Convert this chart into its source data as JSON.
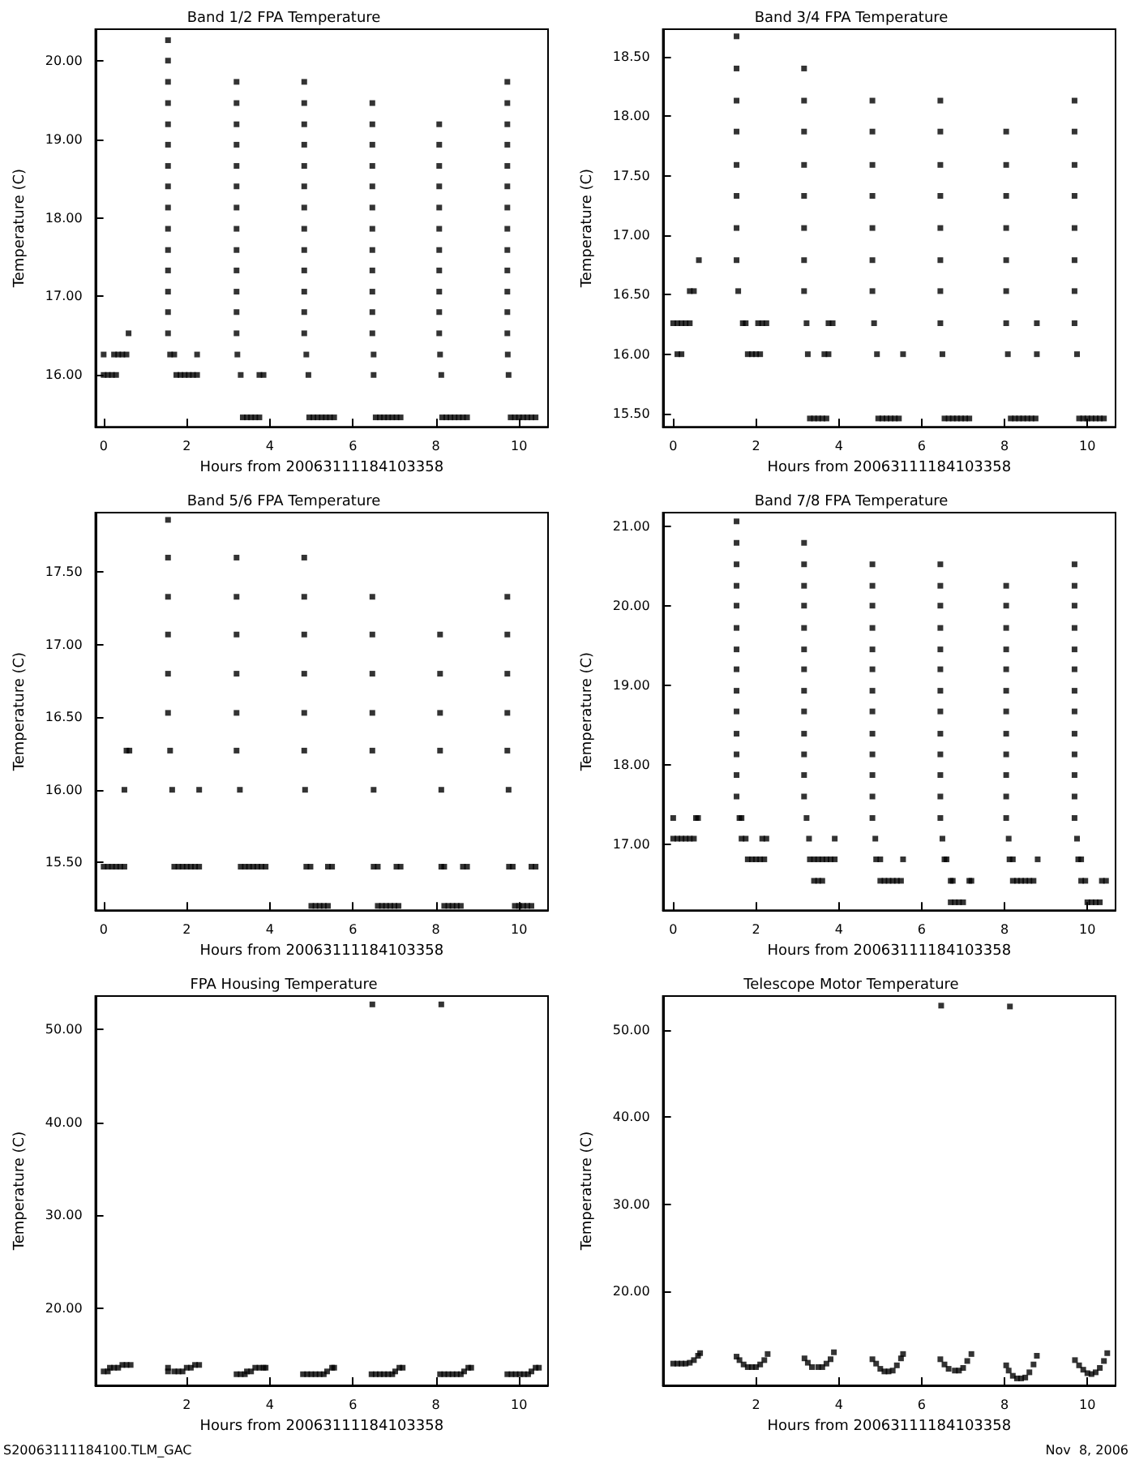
{
  "chart_data": [
    {
      "type": "scatter",
      "title": "Band 1/2 FPA Temperature",
      "xlabel": "Hours from 20063111184103358",
      "ylabel": "Temperature (C)",
      "marker": "square",
      "xlim": [
        -0.2,
        10.7
      ],
      "ylim": [
        15.34,
        20.4
      ],
      "xticks": [
        0,
        2,
        4,
        6,
        8,
        10
      ],
      "yticks": [
        {
          "value": 16,
          "label": "16.00"
        },
        {
          "value": 17,
          "label": "17.00"
        },
        {
          "value": 18,
          "label": "18.00"
        },
        {
          "value": 19,
          "label": "19.00"
        },
        {
          "value": 20,
          "label": "20.00"
        }
      ],
      "series": [
        {
          "color": "#000000",
          "x": [
            0,
            0.25,
            0.35,
            0.45,
            0.55,
            0,
            0.1,
            0.2,
            0.3,
            0.6,
            1.55,
            1.55,
            1.55,
            1.55,
            1.55,
            1.55,
            1.55,
            1.55,
            1.55,
            1.55,
            1.55,
            1.55,
            1.55,
            1.55,
            1.55,
            1.6,
            1.7,
            2.25,
            1.75,
            1.85,
            1.95,
            2.05,
            2.15,
            2.25,
            3.2,
            3.2,
            3.2,
            3.2,
            3.2,
            3.2,
            3.2,
            3.2,
            3.2,
            3.2,
            3.2,
            3.2,
            3.2,
            3.22,
            3.3,
            3.75,
            3.85,
            3.35,
            3.45,
            3.55,
            3.65,
            3.75,
            4.83,
            4.83,
            4.83,
            4.83,
            4.83,
            4.83,
            4.83,
            4.83,
            4.83,
            4.83,
            4.83,
            4.83,
            4.83,
            4.88,
            4.93,
            4.95,
            5.05,
            5.15,
            5.25,
            5.35,
            5.45,
            5.55,
            6.47,
            6.47,
            6.47,
            6.47,
            6.47,
            6.47,
            6.47,
            6.47,
            6.47,
            6.47,
            6.47,
            6.47,
            6.5,
            6.5,
            6.55,
            6.65,
            6.75,
            6.85,
            6.95,
            7.05,
            7.15,
            8.08,
            8.08,
            8.08,
            8.08,
            8.08,
            8.08,
            8.08,
            8.08,
            8.08,
            8.08,
            8.08,
            8.1,
            8.13,
            8.15,
            8.25,
            8.35,
            8.45,
            8.55,
            8.65,
            8.75,
            9.72,
            9.72,
            9.72,
            9.72,
            9.72,
            9.72,
            9.72,
            9.72,
            9.72,
            9.72,
            9.72,
            9.72,
            9.72,
            9.73,
            9.75,
            9.8,
            9.9,
            10,
            10.1,
            10.2,
            10.3,
            10.4
          ],
          "values": [
            16.26,
            16.26,
            16.26,
            16.26,
            16.26,
            16,
            16,
            16,
            16,
            16.53,
            20.26,
            20,
            19.73,
            19.46,
            19.19,
            18.93,
            18.66,
            18.4,
            18.13,
            17.86,
            17.59,
            17.33,
            17.06,
            16.8,
            16.53,
            16.26,
            16.26,
            16.26,
            16,
            16,
            16,
            16,
            16,
            16,
            19.73,
            19.46,
            19.19,
            18.93,
            18.66,
            18.4,
            18.13,
            17.86,
            17.59,
            17.33,
            17.06,
            16.8,
            16.53,
            16.26,
            16,
            16,
            16,
            15.46,
            15.46,
            15.46,
            15.46,
            15.46,
            19.73,
            19.46,
            19.19,
            18.93,
            18.66,
            18.4,
            18.13,
            17.86,
            17.59,
            17.33,
            17.06,
            16.8,
            16.53,
            16.26,
            16,
            15.46,
            15.46,
            15.46,
            15.46,
            15.46,
            15.46,
            15.46,
            19.46,
            19.19,
            18.93,
            18.66,
            18.4,
            18.13,
            17.86,
            17.59,
            17.33,
            17.06,
            16.8,
            16.53,
            16.26,
            16,
            15.46,
            15.46,
            15.46,
            15.46,
            15.46,
            15.46,
            15.46,
            19.19,
            18.93,
            18.66,
            18.4,
            18.13,
            17.86,
            17.59,
            17.33,
            17.06,
            16.8,
            16.53,
            16.26,
            16,
            15.46,
            15.46,
            15.46,
            15.46,
            15.46,
            15.46,
            15.46,
            19.73,
            19.46,
            19.19,
            18.93,
            18.66,
            18.4,
            18.13,
            17.86,
            17.59,
            17.33,
            17.06,
            16.8,
            16.53,
            16.26,
            16,
            15.46,
            15.46,
            15.46,
            15.46,
            15.46,
            15.46,
            15.46
          ]
        }
      ]
    },
    {
      "type": "scatter",
      "title": "Band 3/4 FPA Temperature",
      "xlabel": "Hours from 20063111184103358",
      "ylabel": "Temperature (C)",
      "marker": "square",
      "xlim": [
        -0.25,
        10.68
      ],
      "ylim": [
        15.39,
        18.73
      ],
      "xticks": [
        0,
        2,
        4,
        6,
        8,
        10
      ],
      "yticks": [
        {
          "value": 15.5,
          "label": "15.50"
        },
        {
          "value": 16,
          "label": "16.00"
        },
        {
          "value": 16.5,
          "label": "16.50"
        },
        {
          "value": 17,
          "label": "17.00"
        },
        {
          "value": 17.5,
          "label": "17.50"
        },
        {
          "value": 18,
          "label": "18.00"
        },
        {
          "value": 18.5,
          "label": "18.50"
        }
      ],
      "series": [
        {
          "color": "#000000",
          "x": [
            0,
            0.1,
            0.2,
            0.3,
            0.4,
            0.1,
            0.2,
            0.4,
            0.5,
            0.62,
            1.53,
            1.53,
            1.53,
            1.53,
            1.53,
            1.53,
            1.53,
            1.53,
            1.57,
            1.68,
            1.75,
            2.05,
            2.15,
            2.25,
            1.8,
            1.9,
            2,
            2.1,
            3.16,
            3.16,
            3.16,
            3.16,
            3.16,
            3.16,
            3.16,
            3.16,
            3.22,
            3.25,
            3.75,
            3.85,
            3.65,
            3.75,
            3.3,
            3.4,
            3.5,
            3.6,
            3.7,
            4.81,
            4.81,
            4.81,
            4.81,
            4.81,
            4.81,
            4.81,
            4.85,
            4.92,
            5.55,
            4.95,
            5.05,
            5.15,
            5.25,
            5.35,
            5.45,
            6.45,
            6.45,
            6.45,
            6.45,
            6.45,
            6.45,
            6.45,
            6.45,
            6.5,
            6.55,
            6.65,
            6.75,
            6.85,
            6.95,
            7.05,
            7.15,
            8.04,
            8.04,
            8.04,
            8.04,
            8.04,
            8.04,
            8.04,
            8.08,
            8.78,
            8.78,
            8.15,
            8.25,
            8.35,
            8.45,
            8.55,
            8.65,
            8.75,
            9.69,
            9.69,
            9.69,
            9.69,
            9.69,
            9.69,
            9.69,
            9.69,
            9.75,
            9.8,
            9.9,
            10,
            10.1,
            10.2,
            10.3,
            10.4
          ],
          "values": [
            16.26,
            16.26,
            16.26,
            16.26,
            16.26,
            16,
            16,
            16.53,
            16.53,
            16.79,
            18.67,
            18.4,
            18.13,
            17.87,
            17.59,
            17.33,
            17.06,
            16.79,
            16.53,
            16.26,
            16.26,
            16.26,
            16.26,
            16.26,
            16,
            16,
            16,
            16,
            18.4,
            18.13,
            17.87,
            17.59,
            17.33,
            17.06,
            16.79,
            16.53,
            16.26,
            16,
            16.26,
            16.26,
            16,
            16,
            15.46,
            15.46,
            15.46,
            15.46,
            15.46,
            18.13,
            17.87,
            17.59,
            17.33,
            17.06,
            16.79,
            16.53,
            16.26,
            16,
            16,
            15.46,
            15.46,
            15.46,
            15.46,
            15.46,
            15.46,
            18.13,
            17.87,
            17.59,
            17.33,
            17.06,
            16.79,
            16.53,
            16.26,
            16,
            15.46,
            15.46,
            15.46,
            15.46,
            15.46,
            15.46,
            15.46,
            17.87,
            17.59,
            17.33,
            17.06,
            16.79,
            16.53,
            16.26,
            16,
            16.26,
            16,
            15.46,
            15.46,
            15.46,
            15.46,
            15.46,
            15.46,
            15.46,
            18.13,
            17.87,
            17.59,
            17.33,
            17.06,
            16.79,
            16.53,
            16.26,
            16,
            15.46,
            15.46,
            15.46,
            15.46,
            15.46,
            15.46,
            15.46
          ]
        }
      ]
    },
    {
      "type": "scatter",
      "title": "Band 5/6 FPA Temperature",
      "xlabel": "Hours from 20063111184103358",
      "ylabel": "Temperature (C)",
      "marker": "square",
      "xlim": [
        -0.2,
        10.7
      ],
      "ylim": [
        15.17,
        17.91
      ],
      "xticks": [
        0,
        2,
        4,
        6,
        8,
        10
      ],
      "yticks": [
        {
          "value": 15.5,
          "label": "15.50"
        },
        {
          "value": 16,
          "label": "16.00"
        },
        {
          "value": 16.5,
          "label": "16.50"
        },
        {
          "value": 17,
          "label": "17.00"
        },
        {
          "value": 17.5,
          "label": "17.50"
        }
      ],
      "series": [
        {
          "color": "#000000",
          "x": [
            0,
            0.1,
            0.2,
            0.3,
            0.4,
            0.5,
            0.5,
            0.55,
            0.62,
            1.55,
            1.55,
            1.55,
            1.55,
            1.55,
            1.55,
            1.6,
            1.65,
            2.3,
            1.7,
            1.8,
            1.9,
            2,
            2.1,
            2.2,
            2.3,
            3.2,
            3.2,
            3.2,
            3.2,
            3.2,
            3.2,
            3.28,
            3.3,
            3.4,
            3.5,
            3.6,
            3.7,
            3.8,
            3.9,
            4.83,
            4.83,
            4.83,
            4.83,
            4.83,
            4.83,
            4.85,
            4.88,
            4.98,
            5.4,
            5.5,
            5,
            5.1,
            5.2,
            5.3,
            5.4,
            6.47,
            6.47,
            6.47,
            6.47,
            6.47,
            6.5,
            6.5,
            6.6,
            7.05,
            7.15,
            6.6,
            6.7,
            6.8,
            6.9,
            7,
            7.1,
            8.1,
            8.1,
            8.1,
            8.1,
            8.13,
            8.13,
            8.2,
            8.65,
            8.75,
            8.2,
            8.3,
            8.4,
            8.5,
            8.6,
            9.72,
            9.72,
            9.72,
            9.72,
            9.72,
            9.75,
            9.76,
            9.85,
            10.3,
            10.4,
            9.9,
            10,
            10.1,
            10.2,
            10.3
          ],
          "values": [
            15.47,
            15.47,
            15.47,
            15.47,
            15.47,
            15.47,
            16,
            16.27,
            16.27,
            17.86,
            17.6,
            17.33,
            17.07,
            16.8,
            16.53,
            16.27,
            16,
            16,
            15.47,
            15.47,
            15.47,
            15.47,
            15.47,
            15.47,
            15.47,
            17.6,
            17.33,
            17.07,
            16.8,
            16.53,
            16.27,
            16,
            15.47,
            15.47,
            15.47,
            15.47,
            15.47,
            15.47,
            15.47,
            17.6,
            17.33,
            17.07,
            16.8,
            16.53,
            16.27,
            16,
            15.47,
            15.47,
            15.47,
            15.47,
            15.2,
            15.2,
            15.2,
            15.2,
            15.2,
            17.33,
            17.07,
            16.8,
            16.53,
            16.27,
            16,
            15.47,
            15.47,
            15.47,
            15.47,
            15.2,
            15.2,
            15.2,
            15.2,
            15.2,
            15.2,
            17.07,
            16.8,
            16.53,
            16.27,
            16,
            15.47,
            15.47,
            15.47,
            15.47,
            15.2,
            15.2,
            15.2,
            15.2,
            15.2,
            17.33,
            17.07,
            16.8,
            16.53,
            16.27,
            16,
            15.47,
            15.47,
            15.47,
            15.47,
            15.2,
            15.2,
            15.2,
            15.2,
            15.2
          ]
        }
      ]
    },
    {
      "type": "scatter",
      "title": "Band 7/8 FPA Temperature",
      "xlabel": "Hours from 20063111184103358",
      "ylabel": "Temperature (C)",
      "marker": "square",
      "xlim": [
        -0.25,
        10.68
      ],
      "ylim": [
        16.17,
        21.17
      ],
      "xticks": [
        0,
        2,
        4,
        6,
        8,
        10
      ],
      "yticks": [
        {
          "value": 17,
          "label": "17.00"
        },
        {
          "value": 18,
          "label": "18.00"
        },
        {
          "value": 19,
          "label": "19.00"
        },
        {
          "value": 20,
          "label": "20.00"
        },
        {
          "value": 21,
          "label": "21.00"
        }
      ],
      "series": [
        {
          "color": "#000000",
          "x": [
            0,
            0.55,
            0.6,
            0,
            0.1,
            0.2,
            0.3,
            0.4,
            0.5,
            1.53,
            1.53,
            1.53,
            1.53,
            1.53,
            1.53,
            1.53,
            1.53,
            1.53,
            1.53,
            1.53,
            1.53,
            1.53,
            1.53,
            1.6,
            1.65,
            1.65,
            1.75,
            2.15,
            2.25,
            1.8,
            1.9,
            2,
            2.1,
            2.2,
            3.16,
            3.16,
            3.16,
            3.16,
            3.16,
            3.16,
            3.16,
            3.16,
            3.16,
            3.16,
            3.16,
            3.16,
            3.16,
            3.22,
            3.28,
            3.9,
            3.3,
            3.4,
            3.5,
            3.6,
            3.7,
            3.8,
            3.9,
            3.4,
            3.5,
            3.6,
            4.81,
            4.81,
            4.81,
            4.81,
            4.81,
            4.81,
            4.81,
            4.81,
            4.81,
            4.81,
            4.81,
            4.81,
            4.81,
            4.88,
            4.9,
            5,
            5.55,
            5,
            5.1,
            5.2,
            5.3,
            5.4,
            5.5,
            6.45,
            6.45,
            6.45,
            6.45,
            6.45,
            6.45,
            6.45,
            6.45,
            6.45,
            6.45,
            6.45,
            6.45,
            6.45,
            6.5,
            6.55,
            6.6,
            6.7,
            6.75,
            7.15,
            7.2,
            6.7,
            6.8,
            6.9,
            7,
            8.04,
            8.04,
            8.04,
            8.04,
            8.04,
            8.04,
            8.04,
            8.04,
            8.04,
            8.04,
            8.04,
            8.04,
            8.1,
            8.12,
            8.2,
            8.8,
            8.2,
            8.3,
            8.4,
            8.5,
            8.6,
            8.7,
            9.69,
            9.69,
            9.69,
            9.69,
            9.69,
            9.69,
            9.69,
            9.69,
            9.69,
            9.69,
            9.69,
            9.69,
            9.69,
            9.75,
            9.78,
            9.85,
            9.85,
            9.95,
            10.35,
            10.45,
            10,
            10.1,
            10.2,
            10.3
          ],
          "values": [
            17.33,
            17.33,
            17.33,
            17.07,
            17.07,
            17.07,
            17.07,
            17.07,
            17.07,
            21.06,
            20.79,
            20.52,
            20.25,
            20,
            19.72,
            19.45,
            19.2,
            18.93,
            18.67,
            18.39,
            18.13,
            17.87,
            17.6,
            17.33,
            17.33,
            17.07,
            17.07,
            17.07,
            17.07,
            16.81,
            16.81,
            16.81,
            16.81,
            16.81,
            20.79,
            20.52,
            20.25,
            20,
            19.72,
            19.45,
            19.2,
            18.93,
            18.67,
            18.39,
            18.13,
            17.87,
            17.6,
            17.33,
            17.07,
            17.07,
            16.81,
            16.81,
            16.81,
            16.81,
            16.81,
            16.81,
            16.81,
            16.54,
            16.54,
            16.54,
            20.52,
            20.25,
            20,
            19.72,
            19.45,
            19.2,
            18.93,
            18.67,
            18.39,
            18.13,
            17.87,
            17.6,
            17.33,
            17.07,
            16.81,
            16.81,
            16.81,
            16.54,
            16.54,
            16.54,
            16.54,
            16.54,
            16.54,
            20.52,
            20.25,
            20,
            19.72,
            19.45,
            19.2,
            18.93,
            18.67,
            18.39,
            18.13,
            17.87,
            17.6,
            17.33,
            17.07,
            16.81,
            16.81,
            16.54,
            16.54,
            16.54,
            16.54,
            16.27,
            16.27,
            16.27,
            16.27,
            20.25,
            20,
            19.72,
            19.45,
            19.2,
            18.93,
            18.67,
            18.39,
            18.13,
            17.87,
            17.6,
            17.33,
            17.07,
            16.81,
            16.81,
            16.81,
            16.54,
            16.54,
            16.54,
            16.54,
            16.54,
            16.54,
            20.52,
            20.25,
            20,
            19.72,
            19.45,
            19.2,
            18.93,
            18.67,
            18.39,
            18.13,
            17.87,
            17.6,
            17.33,
            17.07,
            16.81,
            16.81,
            16.54,
            16.54,
            16.54,
            16.54,
            16.27,
            16.27,
            16.27,
            16.27
          ]
        }
      ]
    },
    {
      "type": "scatter",
      "title": "FPA Housing Temperature",
      "xlabel": "Hours from 20063111184103358",
      "ylabel": "Temperature (C)",
      "marker": "square",
      "xlim": [
        -0.2,
        10.7
      ],
      "ylim": [
        11.7,
        53.6
      ],
      "xticks": [
        2,
        4,
        6,
        8,
        10
      ],
      "yticks": [
        {
          "value": 20,
          "label": "20.00"
        },
        {
          "value": 30,
          "label": "30.00"
        },
        {
          "value": 40,
          "label": "40.00"
        },
        {
          "value": 50,
          "label": "50.00"
        }
      ],
      "annotations": [
        "S20063111184100.TLM_GAC"
      ],
      "series": [
        {
          "color": "#000000",
          "x": [
            0,
            0.1,
            0.15,
            0.25,
            0.35,
            0.45,
            0.55,
            0.65,
            1.55,
            1.55,
            1.7,
            1.8,
            1.9,
            2,
            2.1,
            2.2,
            2.3,
            3.2,
            3.3,
            3.4,
            3.45,
            3.55,
            3.65,
            3.75,
            3.85,
            3.9,
            4.8,
            4.9,
            5,
            5.1,
            5.2,
            5.3,
            5.38,
            5.5,
            5.55,
            6.45,
            6.55,
            6.65,
            6.75,
            6.85,
            6.95,
            7.02,
            7.12,
            7.2,
            8.1,
            8.2,
            8.3,
            8.4,
            8.5,
            8.6,
            8.68,
            8.78,
            8.85,
            9.72,
            9.82,
            9.92,
            10.02,
            10.12,
            10.22,
            10.3,
            10.4,
            10.48,
            6.47,
            8.13
          ],
          "values": [
            13.2,
            13.2,
            13.6,
            13.6,
            13.6,
            13.9,
            13.9,
            13.9,
            13.6,
            13.2,
            13.2,
            13.2,
            13.2,
            13.6,
            13.6,
            13.9,
            13.9,
            12.9,
            12.9,
            12.9,
            13.2,
            13.2,
            13.6,
            13.6,
            13.6,
            13.6,
            12.9,
            12.9,
            12.9,
            12.9,
            12.9,
            12.9,
            13.2,
            13.6,
            13.6,
            12.9,
            12.9,
            12.9,
            12.9,
            12.9,
            12.9,
            13.2,
            13.6,
            13.6,
            12.9,
            12.9,
            12.9,
            12.9,
            12.9,
            12.9,
            13.2,
            13.6,
            13.6,
            12.9,
            12.9,
            12.9,
            12.9,
            12.9,
            12.9,
            13.2,
            13.6,
            13.6,
            52.7,
            52.7
          ]
        }
      ]
    },
    {
      "type": "scatter",
      "title": "Telescope Motor Temperature",
      "xlabel": "Hours from 20063111184103358",
      "ylabel": "Temperature (C)",
      "marker": "square",
      "xlim": [
        -0.25,
        10.68
      ],
      "ylim": [
        9.2,
        53.9
      ],
      "xticks": [
        2,
        4,
        6,
        8,
        10
      ],
      "yticks": [
        {
          "value": 20,
          "label": "20.00"
        },
        {
          "value": 30,
          "label": "30.00"
        },
        {
          "value": 40,
          "label": "40.00"
        },
        {
          "value": 50,
          "label": "50.00"
        }
      ],
      "annotations": [
        "Nov  8, 2006"
      ],
      "series": [
        {
          "color": "#000000",
          "x": [
            0,
            0.1,
            0.2,
            0.3,
            0.4,
            0.5,
            0.6,
            0.65,
            1.53,
            1.6,
            1.7,
            1.8,
            1.9,
            2,
            2.1,
            2.2,
            2.28,
            3.17,
            3.25,
            3.35,
            3.5,
            3.6,
            3.7,
            3.8,
            3.88,
            4.81,
            4.9,
            5,
            5.1,
            5.2,
            5.3,
            5.4,
            5.5,
            5.55,
            6.45,
            6.55,
            6.65,
            6.8,
            6.9,
            7,
            7.1,
            7.2,
            8.04,
            8.1,
            8.2,
            8.3,
            8.4,
            8.5,
            8.6,
            8.7,
            8.78,
            9.7,
            9.8,
            9.9,
            10,
            10.1,
            10.2,
            10.3,
            10.4,
            10.48,
            6.47,
            8.13
          ],
          "values": [
            11.7,
            11.7,
            11.7,
            11.7,
            11.8,
            12.1,
            12.6,
            12.9,
            12.5,
            12.1,
            11.6,
            11.3,
            11.3,
            11.3,
            11.6,
            12.1,
            12.8,
            12.3,
            11.8,
            11.3,
            11.3,
            11.3,
            11.7,
            12.2,
            13,
            12.2,
            11.7,
            11.1,
            10.8,
            10.8,
            10.9,
            11.5,
            12.3,
            12.8,
            12.2,
            11.6,
            11.1,
            10.9,
            10.9,
            11.2,
            12,
            12.8,
            11.5,
            10.9,
            10.3,
            10,
            10,
            10.1,
            10.7,
            11.6,
            12.6,
            12.1,
            11.5,
            11,
            10.6,
            10.5,
            10.7,
            11.2,
            12,
            12.9,
            52.8,
            52.7
          ]
        }
      ]
    }
  ]
}
